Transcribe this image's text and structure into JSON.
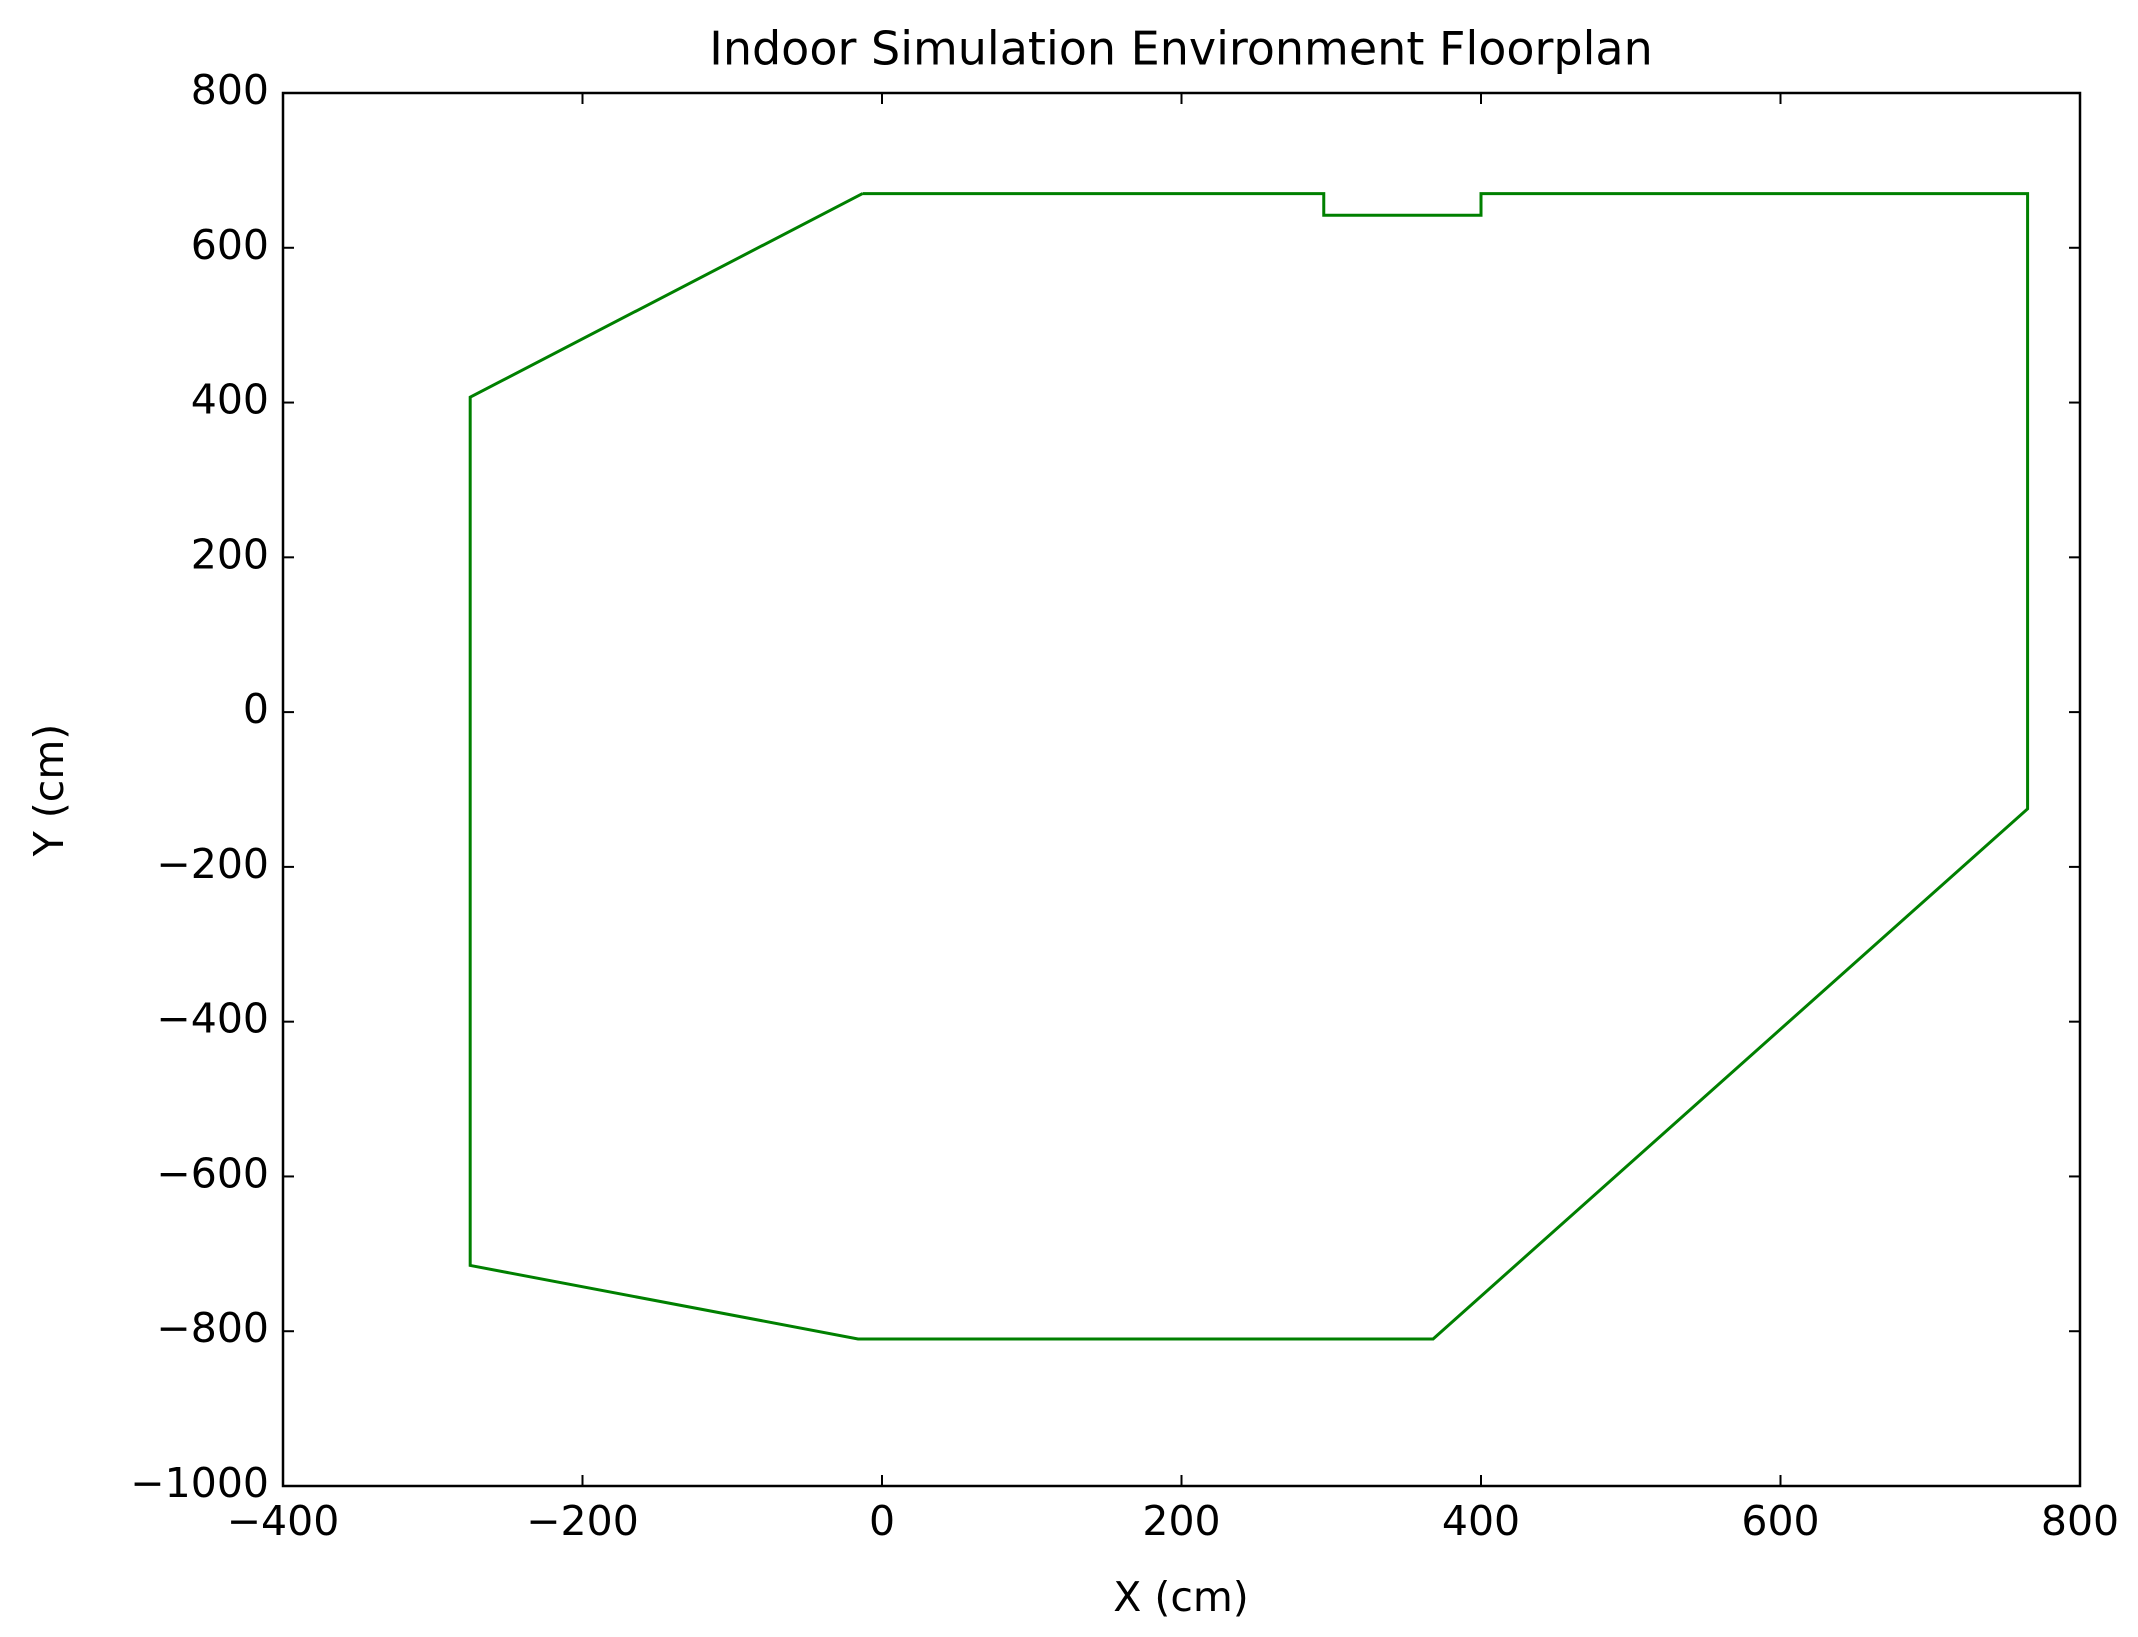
{
  "chart_data": {
    "type": "line",
    "title": "Indoor Simulation Environment Floorplan",
    "x_label": "X (cm)",
    "y_label": "Y (cm)",
    "x": [
      -13,
      295,
      295,
      400,
      400,
      765,
      765,
      368,
      -16,
      -275,
      -275,
      -13
    ],
    "values": [
      670,
      670,
      642,
      642,
      670,
      670,
      -125,
      -810,
      -810,
      -715,
      407,
      670
    ],
    "color": "#008000",
    "xlim": [
      -400,
      800
    ],
    "xticks": [
      {
        "value": -400,
        "label": "−400"
      },
      {
        "value": -200,
        "label": "−200"
      },
      0,
      200,
      400,
      600,
      800
    ],
    "ylim": [
      -1000,
      800
    ],
    "yticks": [
      {
        "value": -1000,
        "label": "−1000"
      },
      {
        "value": -800,
        "label": "−800"
      },
      {
        "value": -600,
        "label": "−600"
      },
      {
        "value": -400,
        "label": "−400"
      },
      {
        "value": -200,
        "label": "−200"
      },
      0,
      200,
      400,
      600,
      800
    ],
    "grid": false
  }
}
